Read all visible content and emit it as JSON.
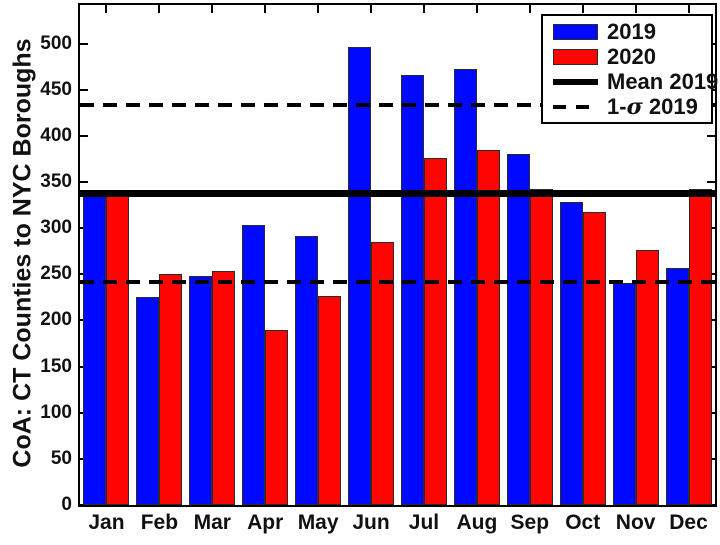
{
  "figure": {
    "background": "#ffffff",
    "axis_color": "#000000",
    "bar_edge_color": "#2b2b2b"
  },
  "legend": {
    "position": "top-right",
    "entries": [
      {
        "label": "2019",
        "swatch": "blue-filled-box"
      },
      {
        "label": "2020",
        "swatch": "red-filled-box"
      },
      {
        "label": "Mean 2019",
        "swatch": "thick-solid-line"
      },
      {
        "sigma_prefix": "1-",
        "sigma_symbol": "σ",
        "sigma_suffix": " 2019",
        "swatch": "dashed-line"
      }
    ]
  },
  "chart_data": {
    "type": "bar",
    "title": "",
    "xlabel": "",
    "ylabel": "CoA: CT Counties to NYC Boroughs",
    "categories": [
      "Jan",
      "Feb",
      "Mar",
      "Apr",
      "May",
      "Jun",
      "Jul",
      "Aug",
      "Sep",
      "Oct",
      "Nov",
      "Dec"
    ],
    "series": [
      {
        "name": "2019",
        "color": "#0008ff",
        "values": [
          338,
          226,
          248,
          304,
          292,
          496,
          466,
          473,
          381,
          329,
          241,
          257
        ]
      },
      {
        "name": "2020",
        "color": "#ff0400",
        "values": [
          342,
          250,
          254,
          190,
          227,
          285,
          376,
          385,
          343,
          318,
          276,
          343
        ]
      }
    ],
    "reference_lines": [
      {
        "name": "Mean 2019",
        "value": 338,
        "style": "solid",
        "color": "#000000"
      },
      {
        "name": "Mean 2019 + 1-sigma",
        "value": 434,
        "style": "dashed",
        "color": "#000000"
      },
      {
        "name": "Mean 2019 - 1-sigma",
        "value": 242,
        "style": "dashed",
        "color": "#000000"
      }
    ],
    "ylim": [
      0,
      542
    ],
    "yticks": [
      0,
      50,
      100,
      150,
      200,
      250,
      300,
      350,
      400,
      450,
      500
    ],
    "grid": false,
    "legend_position": "top-right"
  }
}
